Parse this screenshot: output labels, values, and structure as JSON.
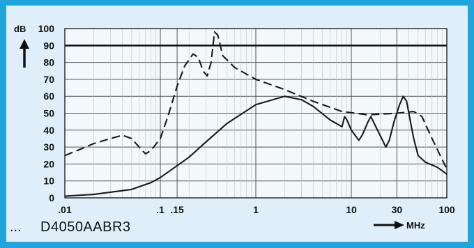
{
  "chart_data": {
    "type": "line",
    "ylabel": "dB",
    "xlabel_unit": "MHz",
    "x_scale": "log",
    "xlim": [
      0.01,
      100
    ],
    "ylim": [
      0,
      100
    ],
    "y_ticks": [
      "0",
      "10",
      "20",
      "30",
      "40",
      "50",
      "60",
      "70",
      "80",
      "90",
      "100"
    ],
    "x_ticks": [
      {
        "value": 0.01,
        "label": ".01"
      },
      {
        "value": 0.1,
        "label": ".1"
      },
      {
        "value": 0.15,
        "label": ".15"
      },
      {
        "value": 1,
        "label": "1"
      },
      {
        "value": 10,
        "label": "10"
      },
      {
        "value": 30,
        "label": "30"
      },
      {
        "value": 100,
        "label": "100"
      }
    ],
    "grid": true,
    "reference_lines": [
      90
    ],
    "series": [
      {
        "style": "dashed",
        "points": [
          [
            0.01,
            25
          ],
          [
            0.015,
            29
          ],
          [
            0.02,
            32
          ],
          [
            0.03,
            35
          ],
          [
            0.04,
            37
          ],
          [
            0.05,
            35
          ],
          [
            0.06,
            30
          ],
          [
            0.07,
            26
          ],
          [
            0.08,
            28
          ],
          [
            0.1,
            35
          ],
          [
            0.12,
            48
          ],
          [
            0.15,
            66
          ],
          [
            0.18,
            78
          ],
          [
            0.22,
            85
          ],
          [
            0.25,
            83
          ],
          [
            0.28,
            75
          ],
          [
            0.31,
            72
          ],
          [
            0.34,
            80
          ],
          [
            0.37,
            98
          ],
          [
            0.4,
            96
          ],
          [
            0.45,
            84
          ],
          [
            0.6,
            77
          ],
          [
            1,
            70
          ],
          [
            2,
            64
          ],
          [
            4,
            57
          ],
          [
            8,
            51
          ],
          [
            15,
            49
          ],
          [
            30,
            50
          ],
          [
            45,
            51
          ],
          [
            55,
            48
          ],
          [
            70,
            35
          ],
          [
            100,
            17
          ]
        ]
      },
      {
        "style": "solid",
        "points": [
          [
            0.01,
            1
          ],
          [
            0.02,
            2
          ],
          [
            0.05,
            5
          ],
          [
            0.08,
            9
          ],
          [
            0.1,
            12
          ],
          [
            0.15,
            19
          ],
          [
            0.2,
            24
          ],
          [
            0.3,
            33
          ],
          [
            0.5,
            44
          ],
          [
            1,
            55
          ],
          [
            2,
            60
          ],
          [
            3,
            58
          ],
          [
            4,
            54
          ],
          [
            6,
            46
          ],
          [
            8,
            42
          ],
          [
            8.5,
            48
          ],
          [
            9,
            46
          ],
          [
            10,
            40
          ],
          [
            12,
            34
          ],
          [
            13,
            37
          ],
          [
            15,
            45
          ],
          [
            16,
            48
          ],
          [
            17,
            45
          ],
          [
            20,
            37
          ],
          [
            23,
            30
          ],
          [
            25,
            34
          ],
          [
            28,
            45
          ],
          [
            32,
            55
          ],
          [
            35,
            60
          ],
          [
            38,
            57
          ],
          [
            40,
            50
          ],
          [
            45,
            35
          ],
          [
            50,
            25
          ],
          [
            60,
            21
          ],
          [
            80,
            18
          ],
          [
            100,
            14
          ]
        ]
      }
    ]
  },
  "footer": {
    "dots": "...",
    "figure_id": "D4050AABR3"
  }
}
